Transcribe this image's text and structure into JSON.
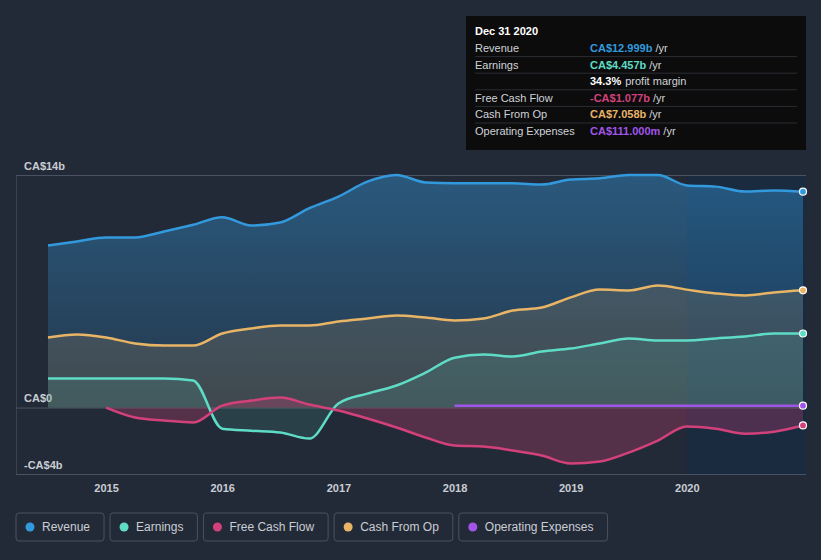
{
  "chart_data": {
    "type": "line",
    "x": [
      2014.5,
      2014.75,
      2015,
      2015.25,
      2015.5,
      2015.75,
      2016,
      2016.25,
      2016.5,
      2016.75,
      2017,
      2017.25,
      2017.5,
      2017.75,
      2018,
      2018.25,
      2018.5,
      2018.75,
      2019,
      2019.25,
      2019.5,
      2019.75,
      2020,
      2020.25,
      2020.5,
      2020.75,
      2021
    ],
    "xlim": [
      2014.5,
      2021
    ],
    "xticks": [
      2015,
      2016,
      2017,
      2018,
      2019,
      2020
    ],
    "ylim": [
      -4,
      14
    ],
    "yticks": [
      {
        "value": -4,
        "label": "-CA$4b"
      },
      {
        "value": 0,
        "label": "CA$0"
      },
      {
        "value": 14,
        "label": "CA$14b"
      }
    ],
    "legend": "bottom",
    "series": [
      {
        "name": "Revenue",
        "color": "#3399dd",
        "values": [
          9.76,
          10.0,
          10.24,
          10.24,
          10.6,
          11.0,
          11.45,
          10.96,
          11.14,
          12.0,
          12.7,
          13.6,
          14.0,
          13.55,
          13.5,
          13.5,
          13.5,
          13.43,
          13.73,
          13.8,
          14.0,
          14.0,
          13.37,
          13.3,
          13.0,
          13.07,
          12.999
        ]
      },
      {
        "name": "Earnings",
        "color": "#5fdcc6",
        "values": [
          1.75,
          1.75,
          1.75,
          1.75,
          1.75,
          1.63,
          -1.27,
          -1.39,
          -1.5,
          -1.87,
          0.24,
          0.84,
          1.33,
          2.1,
          3.0,
          3.2,
          3.07,
          3.37,
          3.55,
          3.86,
          4.16,
          4.04,
          4.04,
          4.16,
          4.28,
          4.46,
          4.457
        ]
      },
      {
        "name": "Free Cash Flow",
        "color": "#d3417b",
        "values": [
          null,
          null,
          0,
          -0.6,
          -0.78,
          -0.9,
          0.12,
          0.42,
          0.6,
          0.18,
          -0.18,
          -0.66,
          -1.2,
          -1.8,
          -2.29,
          -2.35,
          -2.59,
          -2.89,
          -3.37,
          -3.25,
          -2.71,
          -1.99,
          -1.14,
          -1.27,
          -1.57,
          -1.45,
          -1.077
        ]
      },
      {
        "name": "Cash From Op",
        "color": "#e8b466",
        "values": [
          4.22,
          4.4,
          4.22,
          3.86,
          3.73,
          3.73,
          4.46,
          4.76,
          4.94,
          4.94,
          5.18,
          5.36,
          5.54,
          5.42,
          5.24,
          5.36,
          5.84,
          6.02,
          6.63,
          7.1,
          7.05,
          7.35,
          7.1,
          6.87,
          6.75,
          6.93,
          7.058
        ]
      },
      {
        "name": "Operating Expenses",
        "color": "#a155e8",
        "values": [
          null,
          null,
          null,
          null,
          null,
          null,
          null,
          null,
          null,
          null,
          null,
          null,
          null,
          null,
          0.111,
          0.111,
          0.111,
          0.111,
          0.111,
          0.111,
          0.111,
          0.111,
          0.111,
          0.111,
          0.111,
          0.111,
          0.111
        ]
      }
    ],
    "tooltip": {
      "date": "Dec 31 2020",
      "rows": [
        {
          "label": "Revenue",
          "value": "CA$12.999b",
          "unit": "/yr"
        },
        {
          "label": "Earnings",
          "value": "CA$4.457b",
          "unit": "/yr"
        },
        {
          "label": "profit margin",
          "value": "34.3%"
        },
        {
          "label": "Free Cash Flow",
          "value": "-CA$1.077b",
          "unit": "/yr"
        },
        {
          "label": "Cash From Op",
          "value": "CA$7.058b",
          "unit": "/yr"
        },
        {
          "label": "Operating Expenses",
          "value": "CA$111.000m",
          "unit": "/yr"
        }
      ]
    }
  }
}
